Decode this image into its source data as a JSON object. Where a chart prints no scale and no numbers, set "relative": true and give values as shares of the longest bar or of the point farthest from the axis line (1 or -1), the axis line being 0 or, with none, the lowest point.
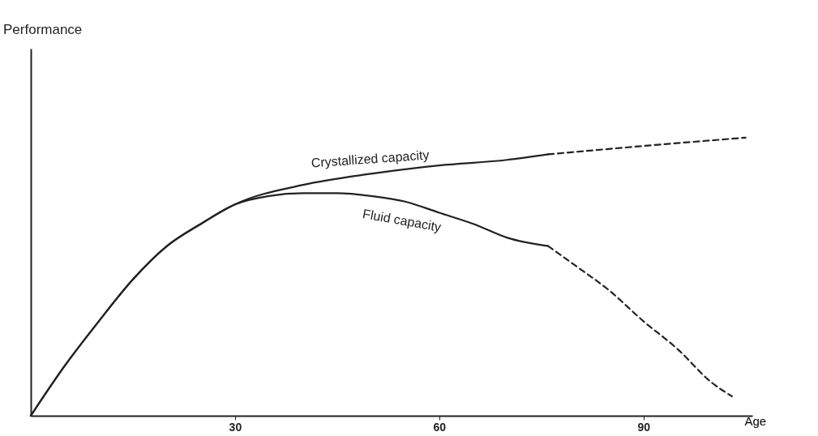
{
  "chart_data": {
    "type": "line",
    "xlabel": "Age",
    "annotations": [
      "Performance"
    ],
    "relative": true,
    "xlim": [
      0,
      106
    ],
    "xticks": [
      30,
      60,
      90
    ],
    "grid": false,
    "series": [
      {
        "name": "Crystallized capacity",
        "color": "#222222",
        "line_style": "solid",
        "x": [
          0,
          5,
          10,
          15,
          20,
          25,
          30,
          40,
          50,
          60,
          70,
          76
        ],
        "values": [
          0,
          0.18,
          0.34,
          0.49,
          0.61,
          0.69,
          0.76,
          0.83,
          0.87,
          0.9,
          0.92,
          0.94
        ]
      },
      {
        "color": "#222222",
        "line_style": "dashed",
        "x": [
          76,
          90,
          105
        ],
        "values": [
          0.94,
          0.97,
          1
        ]
      },
      {
        "name": "Fluid capacity",
        "color": "#222222",
        "line_style": "solid",
        "x": [
          0,
          5,
          10,
          15,
          20,
          25,
          30,
          35,
          40,
          45,
          50,
          55,
          60,
          65,
          70,
          76
        ],
        "values": [
          0,
          0.18,
          0.34,
          0.49,
          0.61,
          0.69,
          0.76,
          0.79,
          0.8,
          0.8,
          0.79,
          0.77,
          0.73,
          0.69,
          0.64,
          0.61
        ]
      },
      {
        "color": "#222222",
        "line_style": "dashed",
        "x": [
          76,
          80,
          85,
          90,
          95,
          100,
          103
        ],
        "values": [
          0.61,
          0.54,
          0.45,
          0.34,
          0.24,
          0.12,
          0.07
        ]
      }
    ]
  }
}
